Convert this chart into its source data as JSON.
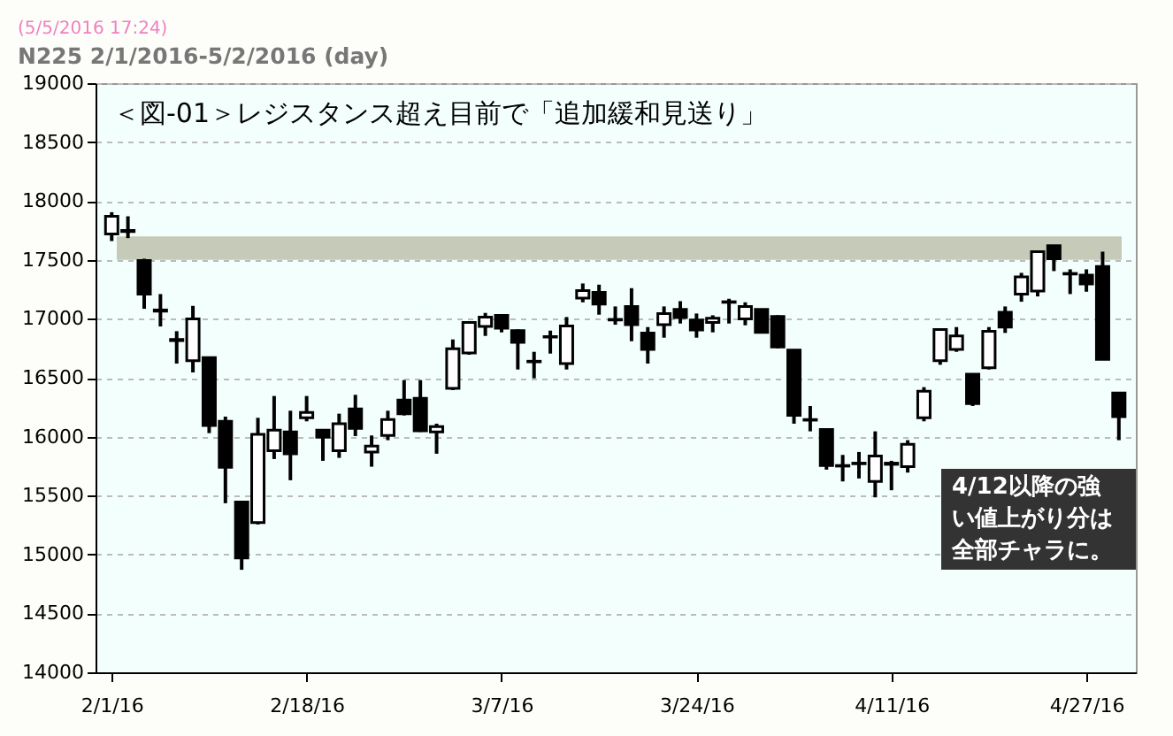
{
  "chart_data": {
    "type": "candlestick",
    "title": "N225 2/1/2016-5/2/2016 (day)",
    "annotations": [
      "(5/5/2016 17:24)",
      "＜図-01＞レジスタンス超え目前で「追加緩和見送り」",
      "4/12以降の強い値上がり分は全部チャラに。"
    ],
    "categories": [
      "2/1/16",
      null,
      null,
      null,
      null,
      null,
      null,
      null,
      null,
      null,
      null,
      null,
      "2/18/16",
      null,
      null,
      null,
      null,
      null,
      null,
      null,
      null,
      null,
      null,
      null,
      "3/7/16",
      null,
      null,
      null,
      null,
      null,
      null,
      null,
      null,
      null,
      null,
      null,
      "3/24/16",
      null,
      null,
      null,
      null,
      null,
      null,
      null,
      null,
      null,
      null,
      null,
      "4/11/16",
      null,
      null,
      null,
      null,
      null,
      null,
      null,
      null,
      null,
      null,
      null,
      "4/27/16",
      null,
      null
    ],
    "ohlc": [
      [
        17720,
        17905,
        17660,
        17870
      ],
      [
        17750,
        17870,
        17685,
        17740
      ],
      [
        17495,
        17510,
        17085,
        17210
      ],
      [
        17075,
        17210,
        16935,
        17065
      ],
      [
        16825,
        16895,
        16620,
        16815
      ],
      [
        16645,
        17110,
        16545,
        17000
      ],
      [
        16670,
        16670,
        16030,
        16095
      ],
      [
        16130,
        16170,
        15435,
        15740
      ],
      [
        15445,
        15445,
        14870,
        14970
      ],
      [
        15270,
        16160,
        15255,
        16020
      ],
      [
        15880,
        16345,
        15810,
        16055
      ],
      [
        16040,
        16220,
        15630,
        15855
      ],
      [
        16160,
        16345,
        16130,
        16205
      ],
      [
        16055,
        16055,
        15795,
        15995
      ],
      [
        15880,
        16195,
        15820,
        16110
      ],
      [
        16235,
        16355,
        16005,
        16070
      ],
      [
        15870,
        16010,
        15745,
        15920
      ],
      [
        16010,
        16220,
        15970,
        16145
      ],
      [
        16310,
        16480,
        16180,
        16195
      ],
      [
        16325,
        16480,
        16040,
        16050
      ],
      [
        16040,
        16110,
        15855,
        16085
      ],
      [
        16410,
        16825,
        16395,
        16745
      ],
      [
        16710,
        16970,
        16695,
        16970
      ],
      [
        16935,
        17050,
        16855,
        17015
      ],
      [
        17030,
        17030,
        16885,
        16920
      ],
      [
        16900,
        16910,
        16570,
        16800
      ],
      [
        16640,
        16720,
        16495,
        16635
      ],
      [
        16845,
        16900,
        16705,
        16850
      ],
      [
        16620,
        17015,
        16570,
        16940
      ],
      [
        17175,
        17300,
        17140,
        17240
      ],
      [
        17225,
        17290,
        17035,
        17125
      ],
      [
        16995,
        17105,
        16950,
        16990
      ],
      [
        17105,
        17260,
        16810,
        16950
      ],
      [
        16880,
        16930,
        16620,
        16740
      ],
      [
        16950,
        17105,
        16840,
        17045
      ],
      [
        17080,
        17150,
        16960,
        17010
      ],
      [
        16990,
        17045,
        16840,
        16905
      ],
      [
        16970,
        17030,
        16885,
        17005
      ],
      [
        17140,
        17170,
        16960,
        17145
      ],
      [
        17000,
        17140,
        16945,
        17105
      ],
      [
        17080,
        17080,
        16885,
        16885
      ],
      [
        17020,
        17030,
        16750,
        16760
      ],
      [
        16735,
        16735,
        16110,
        16180
      ],
      [
        16145,
        16260,
        16045,
        16140
      ],
      [
        16060,
        16060,
        15720,
        15755
      ],
      [
        15755,
        15845,
        15620,
        15750
      ],
      [
        15770,
        15870,
        15645,
        15775
      ],
      [
        15620,
        16045,
        15485,
        15835
      ],
      [
        15765,
        15795,
        15545,
        15775
      ],
      [
        15745,
        15970,
        15695,
        15935
      ],
      [
        16160,
        16420,
        16130,
        16385
      ],
      [
        16645,
        16910,
        16610,
        16910
      ],
      [
        16740,
        16930,
        16720,
        16855
      ],
      [
        16530,
        16530,
        16260,
        16280
      ],
      [
        16585,
        16930,
        16570,
        16895
      ],
      [
        17055,
        17105,
        16880,
        16930
      ],
      [
        17210,
        17390,
        17145,
        17355
      ],
      [
        17235,
        17570,
        17190,
        17570
      ],
      [
        17620,
        17620,
        17405,
        17510
      ],
      [
        17385,
        17420,
        17210,
        17380
      ],
      [
        17370,
        17420,
        17230,
        17295
      ],
      [
        17445,
        17570,
        16655,
        16655
      ],
      [
        16370,
        16370,
        15970,
        16170
      ]
    ],
    "ylim": [
      14000,
      19000
    ],
    "yticks": [
      14000,
      14500,
      15000,
      15500,
      16000,
      16500,
      17000,
      17500,
      18000,
      18500,
      19000
    ],
    "grid": "y",
    "bands": [
      {
        "axis": "y",
        "from": 17500,
        "to": 17700,
        "color": "#c6cbb9"
      }
    ]
  }
}
